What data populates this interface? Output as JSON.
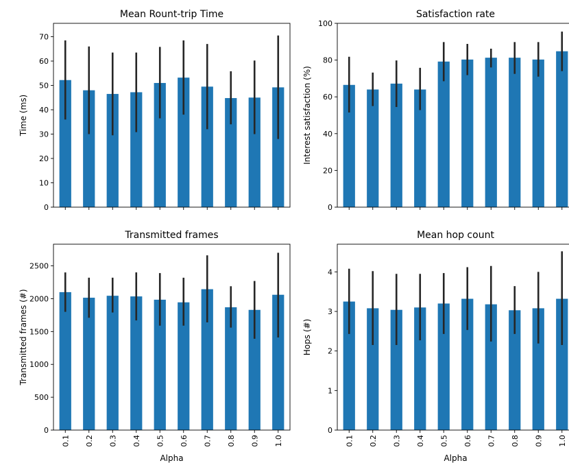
{
  "chart_data": [
    {
      "type": "bar",
      "title": "Mean Rount-trip Time",
      "xlabel": "",
      "ylabel": "Time (ms)",
      "categories": [
        "0.1",
        "0.2",
        "0.3",
        "0.4",
        "0.5",
        "0.6",
        "0.7",
        "0.8",
        "0.9",
        "1.0"
      ],
      "values": [
        52.2,
        48.0,
        46.5,
        47.2,
        51.0,
        53.2,
        49.5,
        44.8,
        45.0,
        49.2
      ],
      "error_low": [
        36.0,
        30.0,
        29.5,
        30.8,
        36.5,
        38.0,
        32.0,
        34.0,
        30.0,
        28.0
      ],
      "error_high": [
        68.5,
        66.0,
        63.5,
        63.5,
        65.8,
        68.5,
        67.0,
        55.8,
        60.2,
        70.5
      ],
      "yticks": [
        0,
        10,
        20,
        30,
        40,
        50,
        60,
        70
      ],
      "ylim": [
        0,
        75.5
      ],
      "show_xticklabels": false,
      "color": "#1f77b4",
      "errorbar_color": "#262626"
    },
    {
      "type": "bar",
      "title": "Satisfaction rate",
      "xlabel": "",
      "ylabel": "Interest satisfaction (%)",
      "categories": [
        "0.1",
        "0.2",
        "0.3",
        "0.4",
        "0.5",
        "0.6",
        "0.7",
        "0.8",
        "0.9",
        "1.0"
      ],
      "values": [
        66.5,
        64.0,
        67.2,
        64.0,
        79.2,
        80.3,
        81.3,
        81.3,
        80.3,
        84.8
      ],
      "error_low": [
        51.5,
        55.0,
        54.5,
        52.8,
        68.5,
        71.8,
        76.0,
        72.5,
        71.0,
        74.0
      ],
      "error_high": [
        81.8,
        73.2,
        79.8,
        75.8,
        89.8,
        88.8,
        86.2,
        89.8,
        89.8,
        95.5
      ],
      "yticks": [
        0,
        20,
        40,
        60,
        80,
        100
      ],
      "ylim": [
        0,
        100
      ],
      "show_xticklabels": false,
      "color": "#1f77b4",
      "errorbar_color": "#262626"
    },
    {
      "type": "bar",
      "title": "Transmitted frames",
      "xlabel": "Alpha",
      "ylabel": "Transmitted frames (#)",
      "categories": [
        "0.1",
        "0.2",
        "0.3",
        "0.4",
        "0.5",
        "0.6",
        "0.7",
        "0.8",
        "0.9",
        "1.0"
      ],
      "values": [
        2100,
        2015,
        2045,
        2035,
        1985,
        1945,
        2145,
        1870,
        1830,
        2060
      ],
      "error_low": [
        1800,
        1710,
        1790,
        1670,
        1590,
        1590,
        1640,
        1560,
        1390,
        1410
      ],
      "error_high": [
        2400,
        2320,
        2320,
        2400,
        2390,
        2320,
        2660,
        2190,
        2270,
        2700
      ],
      "yticks": [
        0,
        500,
        1000,
        1500,
        2000,
        2500
      ],
      "ylim": [
        0,
        2830
      ],
      "show_xticklabels": true,
      "color": "#1f77b4",
      "errorbar_color": "#262626"
    },
    {
      "type": "bar",
      "title": "Mean hop count",
      "xlabel": "Alpha",
      "ylabel": "Hops (#)",
      "categories": [
        "0.1",
        "0.2",
        "0.3",
        "0.4",
        "0.5",
        "0.6",
        "0.7",
        "0.8",
        "0.9",
        "1.0"
      ],
      "values": [
        3.25,
        3.08,
        3.04,
        3.1,
        3.2,
        3.32,
        3.18,
        3.03,
        3.08,
        3.32
      ],
      "error_low": [
        2.43,
        2.15,
        2.15,
        2.27,
        2.43,
        2.53,
        2.24,
        2.43,
        2.19,
        2.15
      ],
      "error_high": [
        4.08,
        4.02,
        3.95,
        3.95,
        3.97,
        4.12,
        4.15,
        3.64,
        4.0,
        4.52
      ],
      "yticks": [
        0,
        1,
        2,
        3,
        4
      ],
      "ylim": [
        0,
        4.7
      ],
      "show_xticklabels": true,
      "color": "#1f77b4",
      "errorbar_color": "#262626"
    }
  ]
}
